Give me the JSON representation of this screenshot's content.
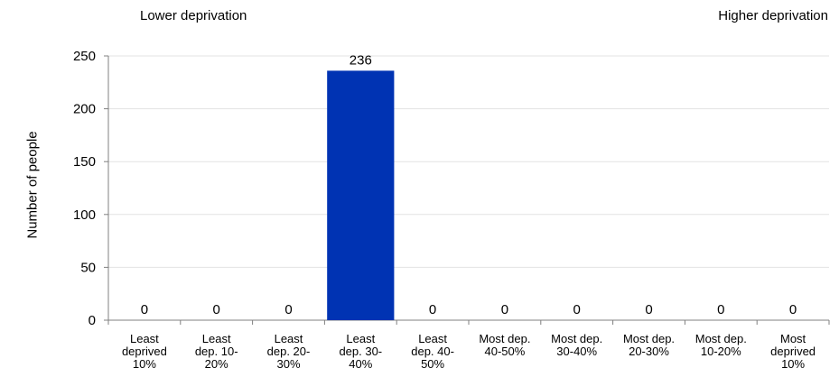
{
  "annotations": {
    "left": "Lower deprivation",
    "right": "Higher deprivation"
  },
  "chart_data": {
    "type": "bar",
    "title": "",
    "xlabel": "",
    "ylabel": "Number of people",
    "categories": [
      "Least deprived 10%",
      "Least dep. 10-20%",
      "Least dep. 20-30%",
      "Least dep. 30-40%",
      "Least dep. 40-50%",
      "Most dep. 40-50%",
      "Most dep. 30-40%",
      "Most dep. 20-30%",
      "Most dep. 10-20%",
      "Most deprived 10%"
    ],
    "category_lines": [
      [
        "Least",
        "deprived",
        "10%"
      ],
      [
        "Least",
        "dep. 10-",
        "20%"
      ],
      [
        "Least",
        "dep. 20-",
        "30%"
      ],
      [
        "Least",
        "dep. 30-",
        "40%"
      ],
      [
        "Least",
        "dep. 40-",
        "50%"
      ],
      [
        "Most dep.",
        "40-50%"
      ],
      [
        "Most dep.",
        "30-40%"
      ],
      [
        "Most dep.",
        "20-30%"
      ],
      [
        "Most dep.",
        "10-20%"
      ],
      [
        "Most",
        "deprived",
        "10%"
      ]
    ],
    "values": [
      0,
      0,
      0,
      236,
      0,
      0,
      0,
      0,
      0,
      0
    ],
    "ylim": [
      0,
      250
    ],
    "yticks": [
      0,
      50,
      100,
      150,
      200,
      250
    ],
    "grid": true,
    "bar_color": "#0033b3",
    "grid_color": "#e3e3e3",
    "axis_color": "#808080"
  }
}
